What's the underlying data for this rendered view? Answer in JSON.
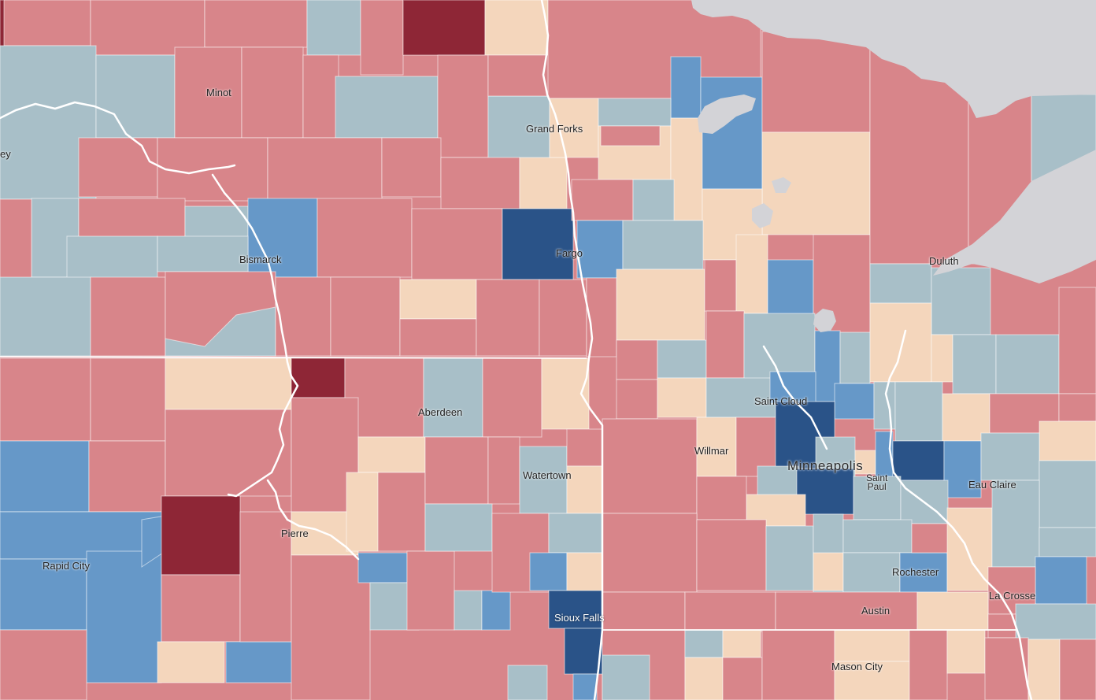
{
  "legend_colors": {
    "dark_red": "#8e2636",
    "red": "#d8858a",
    "light_orange": "#f4d6bc",
    "grey_blue": "#a8bfc8",
    "mid_blue": "#6698c8",
    "dark_blue": "#2a5388",
    "water": "#d3d3d7",
    "border": "#ffffff"
  },
  "cities": {
    "minot": "Minot",
    "grand_forks": "Grand Forks",
    "bismarck": "Bismarck",
    "fargo": "Fargo",
    "duluth": "Duluth",
    "aberdeen": "Aberdeen",
    "saint_cloud": "Saint Cloud",
    "willmar": "Willmar",
    "minneapolis": "Minneapolis",
    "saint_paul_line1": "Saint",
    "saint_paul_line2": "Paul",
    "eau_claire": "Eau Claire",
    "watertown": "Watertown",
    "pierre": "Pierre",
    "rapid_city": "Rapid City",
    "rochester": "Rochester",
    "la_crosse": "La Crosse",
    "sioux_falls": "Sioux Falls",
    "austin": "Austin",
    "mason_city": "Mason City",
    "partial_left": "ey"
  }
}
